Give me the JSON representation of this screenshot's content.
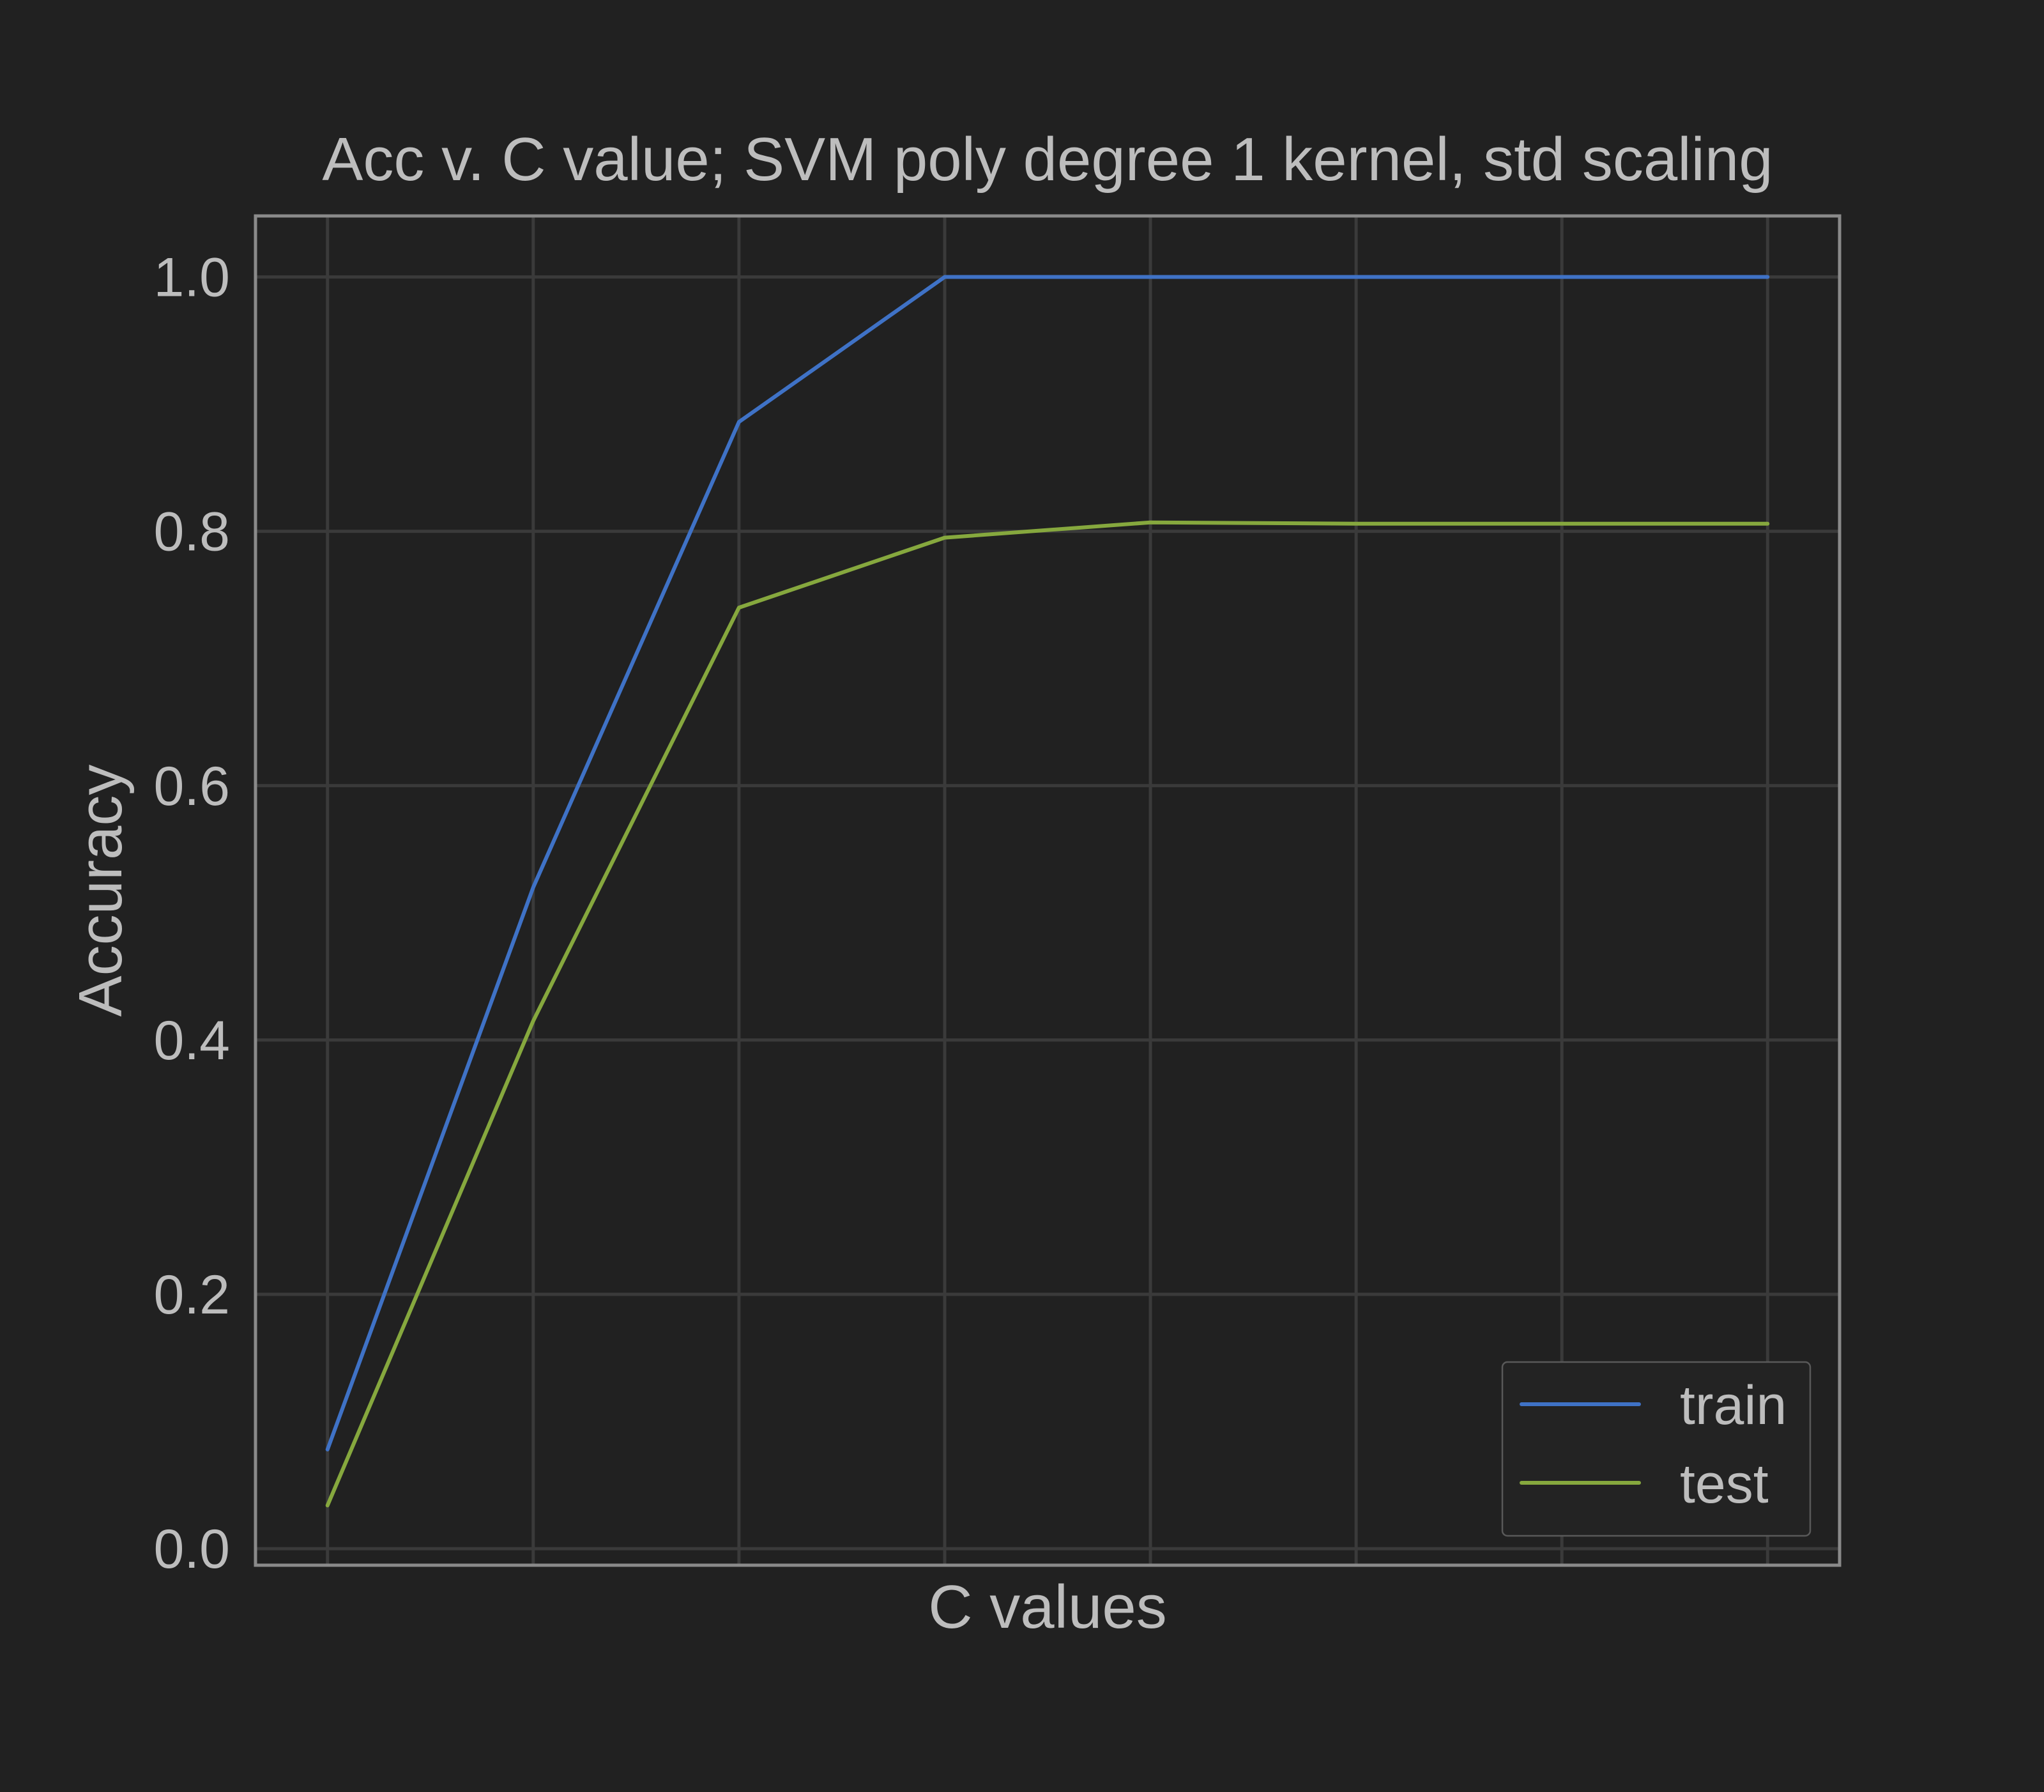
{
  "chart_data": {
    "type": "line",
    "title": "Acc v. C value; SVM poly degree 1 kernel,  std scaling",
    "xlabel": "C values",
    "ylabel": "Accuracy",
    "x": [
      0,
      1,
      2,
      3,
      4,
      5,
      6,
      7
    ],
    "xlim": [
      -0.35,
      7.35
    ],
    "ylim": [
      -0.013,
      1.048
    ],
    "yticks": [
      0.0,
      0.2,
      0.4,
      0.6,
      0.8,
      1.0
    ],
    "ytick_labels": [
      "0.0",
      "0.2",
      "0.4",
      "0.6",
      "0.8",
      "1.0"
    ],
    "grid": true,
    "legend_position": "lower-right",
    "series": [
      {
        "name": "train",
        "color": "#3f72c6",
        "values": [
          0.078,
          0.52,
          0.886,
          1.0,
          1.0,
          1.0,
          1.0,
          1.0
        ]
      },
      {
        "name": "test",
        "color": "#86a83e",
        "values": [
          0.034,
          0.415,
          0.74,
          0.795,
          0.807,
          0.806,
          0.806,
          0.806
        ]
      }
    ]
  },
  "colors": {
    "background": "#212121",
    "grid": "#3a3a3a",
    "spine": "#8a8a8a",
    "text": "#bdbdbd"
  }
}
